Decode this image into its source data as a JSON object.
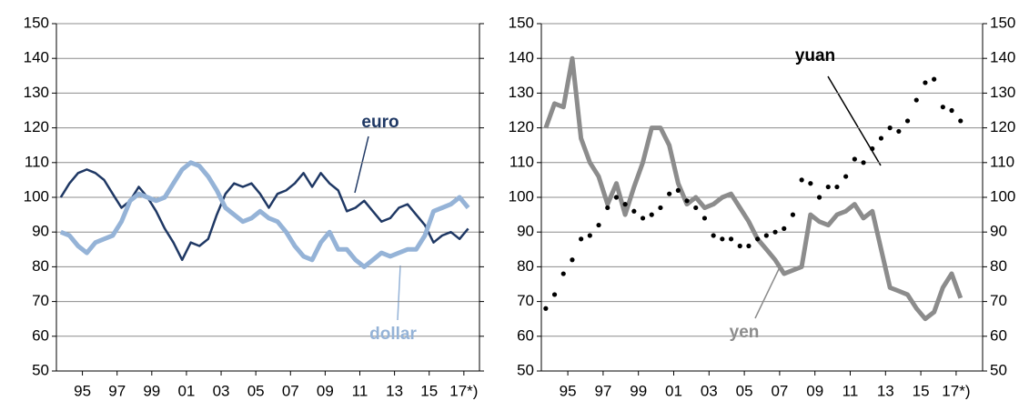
{
  "chart_data": [
    {
      "type": "line",
      "x": [
        1993.75,
        1994.25,
        1994.75,
        1995.25,
        1995.75,
        1996.25,
        1996.75,
        1997.25,
        1997.75,
        1998.25,
        1998.75,
        1999.25,
        1999.75,
        2000.25,
        2000.75,
        2001.25,
        2001.75,
        2002.25,
        2002.75,
        2003.25,
        2003.75,
        2004.25,
        2004.75,
        2005.25,
        2005.75,
        2006.25,
        2006.75,
        2007.25,
        2007.75,
        2008.25,
        2008.75,
        2009.25,
        2009.75,
        2010.25,
        2010.75,
        2011.25,
        2011.75,
        2012.25,
        2012.75,
        2013.25,
        2013.75,
        2014.25,
        2014.75,
        2015.25,
        2015.75,
        2016.25,
        2016.75,
        2017.25
      ],
      "series": [
        {
          "name": "euro",
          "color": "#1f3864",
          "values": [
            100,
            104,
            107,
            108,
            107,
            105,
            101,
            97,
            99,
            103,
            100,
            96,
            91,
            87,
            82,
            87,
            86,
            88,
            95,
            101,
            104,
            103,
            104,
            101,
            97,
            101,
            102,
            104,
            107,
            103,
            107,
            104,
            102,
            96,
            97,
            99,
            96,
            93,
            94,
            97,
            98,
            95,
            92,
            87,
            89,
            90,
            88,
            91
          ]
        },
        {
          "name": "dollar",
          "color": "#95b3d7",
          "values": [
            90,
            89,
            86,
            84,
            87,
            88,
            89,
            93,
            99,
            101,
            100,
            99,
            100,
            104,
            108,
            110,
            109,
            106,
            102,
            97,
            95,
            93,
            94,
            96,
            94,
            93,
            90,
            86,
            83,
            82,
            87,
            90,
            85,
            85,
            82,
            80,
            82,
            84,
            83,
            84,
            85,
            85,
            89,
            96,
            97,
            98,
            100,
            97
          ]
        }
      ],
      "xlim": [
        1993.5,
        2017.9
      ],
      "xticks": [
        {
          "value": 1995,
          "label": "95"
        },
        {
          "value": 1997,
          "label": "97"
        },
        {
          "value": 1999,
          "label": "99"
        },
        {
          "value": 2001,
          "label": "01"
        },
        {
          "value": 2003,
          "label": "03"
        },
        {
          "value": 2005,
          "label": "05"
        },
        {
          "value": 2007,
          "label": "07"
        },
        {
          "value": 2009,
          "label": "09"
        },
        {
          "value": 2011,
          "label": "11"
        },
        {
          "value": 2013,
          "label": "13"
        },
        {
          "value": 2015,
          "label": "15"
        },
        {
          "value": 2017,
          "label": "17*)"
        }
      ],
      "ylim": [
        50,
        150
      ],
      "yticks": [
        50,
        60,
        70,
        80,
        90,
        100,
        110,
        120,
        130,
        140,
        150
      ],
      "grid": true
    },
    {
      "type": "line",
      "x": [
        1993.75,
        1994.25,
        1994.75,
        1995.25,
        1995.75,
        1996.25,
        1996.75,
        1997.25,
        1997.75,
        1998.25,
        1998.75,
        1999.25,
        1999.75,
        2000.25,
        2000.75,
        2001.25,
        2001.75,
        2002.25,
        2002.75,
        2003.25,
        2003.75,
        2004.25,
        2004.75,
        2005.25,
        2005.75,
        2006.25,
        2006.75,
        2007.25,
        2007.75,
        2008.25,
        2008.75,
        2009.25,
        2009.75,
        2010.25,
        2010.75,
        2011.25,
        2011.75,
        2012.25,
        2012.75,
        2013.25,
        2013.75,
        2014.25,
        2014.75,
        2015.25,
        2015.75,
        2016.25,
        2016.75,
        2017.25
      ],
      "series": [
        {
          "name": "yen",
          "color": "#8c8c8c",
          "values": [
            120,
            127,
            126,
            140,
            117,
            110,
            106,
            98,
            104,
            95,
            103,
            110,
            120,
            120,
            115,
            104,
            98,
            100,
            97,
            98,
            100,
            101,
            97,
            93,
            88,
            85,
            82,
            78,
            79,
            80,
            95,
            93,
            92,
            95,
            96,
            98,
            94,
            96,
            85,
            74,
            73,
            72,
            68,
            65,
            67,
            74,
            78,
            71
          ]
        },
        {
          "name": "yuan",
          "color": "#000000",
          "marker": "dots",
          "values": [
            68,
            72,
            78,
            82,
            88,
            89,
            92,
            97,
            100,
            98,
            96,
            94,
            95,
            97,
            101,
            102,
            99,
            97,
            94,
            89,
            88,
            88,
            86,
            86,
            88,
            89,
            90,
            91,
            95,
            105,
            104,
            100,
            103,
            103,
            106,
            111,
            110,
            114,
            117,
            120,
            119,
            122,
            128,
            133,
            134,
            126,
            125,
            122
          ]
        }
      ],
      "xlim": [
        1993.5,
        2018.5
      ],
      "xticks": [
        {
          "value": 1995,
          "label": "95"
        },
        {
          "value": 1997,
          "label": "97"
        },
        {
          "value": 1999,
          "label": "99"
        },
        {
          "value": 2001,
          "label": "01"
        },
        {
          "value": 2003,
          "label": "03"
        },
        {
          "value": 2005,
          "label": "05"
        },
        {
          "value": 2007,
          "label": "07"
        },
        {
          "value": 2009,
          "label": "09"
        },
        {
          "value": 2011,
          "label": "11"
        },
        {
          "value": 2013,
          "label": "13"
        },
        {
          "value": 2015,
          "label": "15"
        },
        {
          "value": 2017,
          "label": "17*)"
        }
      ],
      "ylim": [
        50,
        150
      ],
      "yticks": [
        50,
        60,
        70,
        80,
        90,
        100,
        110,
        120,
        130,
        140,
        150
      ],
      "y2lim": [
        50,
        150
      ],
      "y2ticks": [
        50,
        60,
        70,
        80,
        90,
        100,
        110,
        120,
        130,
        140,
        150
      ],
      "grid": true
    }
  ]
}
